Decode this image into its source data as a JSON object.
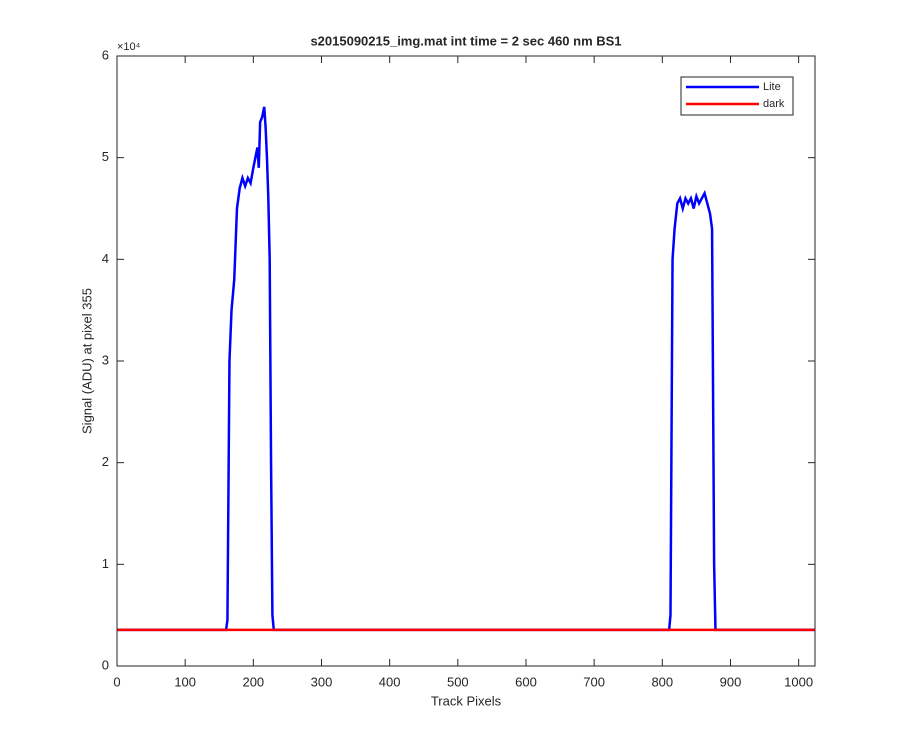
{
  "chart_data": {
    "type": "line",
    "title": "s2015090215_img.mat int time = 2 sec  460 nm BS1",
    "x_label": "Track Pixels",
    "y_label": "Signal (ADU) at pixel 355",
    "y_multiplier": "×10⁴",
    "xlim": [
      0,
      1024
    ],
    "xticks": [
      0,
      100,
      200,
      300,
      400,
      500,
      600,
      700,
      800,
      900,
      1000
    ],
    "ylim": [
      0,
      60000
    ],
    "yticks": [
      {
        "value": 0,
        "label": "0"
      },
      {
        "value": 10000,
        "label": "1"
      },
      {
        "value": 20000,
        "label": "2"
      },
      {
        "value": 30000,
        "label": "3"
      },
      {
        "value": 40000,
        "label": "4"
      },
      {
        "value": 50000,
        "label": "5"
      },
      {
        "value": 60000,
        "label": "6"
      }
    ],
    "grid": false,
    "legend": "top-right",
    "series": [
      {
        "name": "Lite",
        "color": "#0000ff",
        "x": [
          0,
          160,
          162,
          165,
          168,
          172,
          176,
          180,
          184,
          188,
          192,
          196,
          200,
          203,
          206,
          208,
          210,
          213,
          216,
          218,
          220,
          222,
          224,
          226,
          228,
          230,
          810,
          812,
          815,
          818,
          822,
          826,
          830,
          834,
          838,
          842,
          846,
          850,
          854,
          858,
          862,
          866,
          870,
          873,
          876,
          878,
          1024
        ],
        "values": [
          3550,
          3550,
          4500,
          30000,
          35000,
          38000,
          45000,
          47000,
          48000,
          47200,
          48000,
          47500,
          49000,
          50000,
          51000,
          49000,
          53500,
          54000,
          55000,
          53000,
          50000,
          46000,
          40000,
          20000,
          5000,
          3550,
          3550,
          5000,
          40000,
          43000,
          45500,
          46000,
          45000,
          46000,
          45500,
          46000,
          45000,
          46200,
          45500,
          46000,
          46500,
          45500,
          44500,
          43000,
          10000,
          3550,
          3550
        ]
      },
      {
        "name": "dark",
        "color": "#ff0000",
        "x": [
          0,
          1024
        ],
        "values": [
          3550,
          3550
        ]
      }
    ]
  }
}
